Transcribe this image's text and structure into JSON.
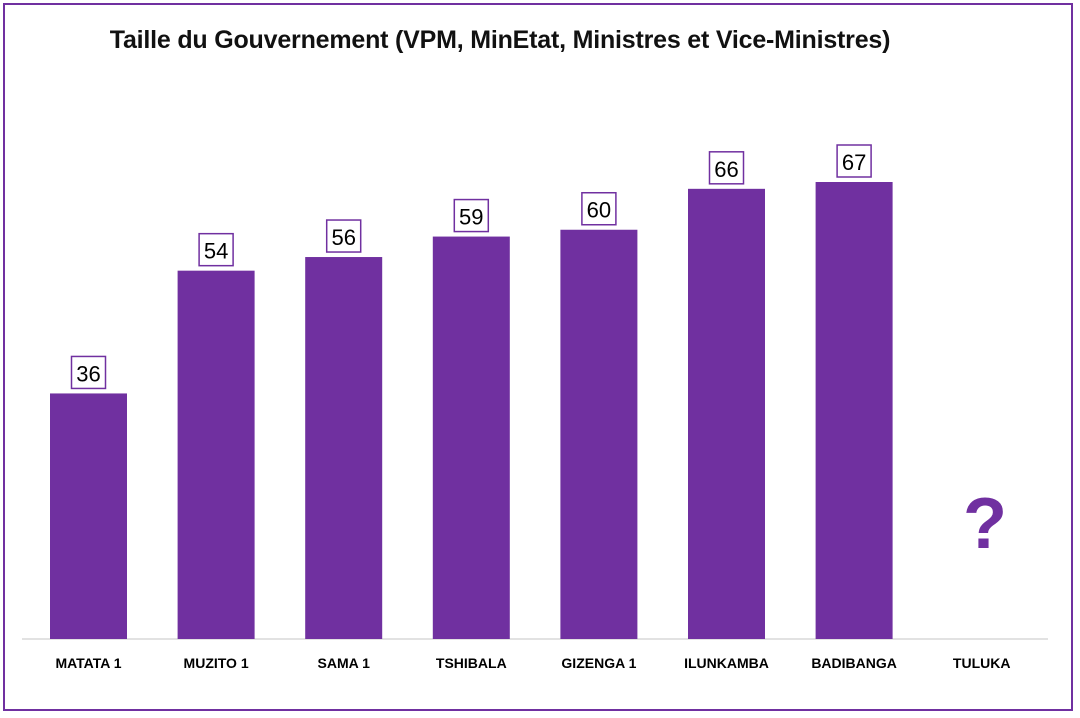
{
  "chart_data": {
    "type": "bar",
    "title": "Taille du Gouvernement (VPM, MinEtat, Ministres et Vice-Ministres)",
    "xlabel": "",
    "ylabel": "",
    "categories": [
      "MATATA 1",
      "MUZITO 1",
      "SAMA 1",
      "TSHIBALA",
      "GIZENGA 1",
      "ILUNKAMBA",
      "BADIBANGA",
      "TULUKA"
    ],
    "values": [
      36,
      54,
      56,
      59,
      60,
      66,
      67,
      null
    ],
    "data_labels": [
      "36",
      "54",
      "56",
      "59",
      "60",
      "66",
      "67",
      ""
    ],
    "ylim": [
      0,
      67
    ],
    "grid": false,
    "legend": "none",
    "bar_color": "#7030a0",
    "unknown_marker": "?"
  }
}
